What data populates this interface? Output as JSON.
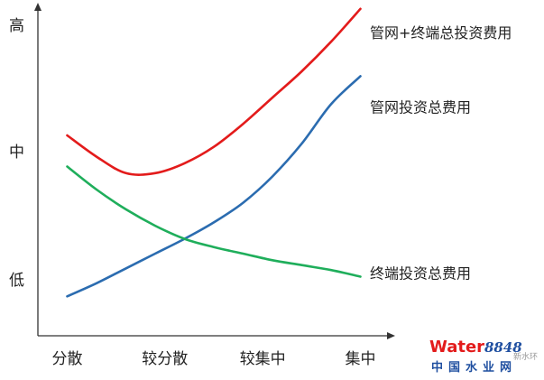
{
  "chart_data": {
    "type": "line",
    "title": "",
    "xlabel": "",
    "ylabel": "",
    "categories": [
      "分散",
      "较分散",
      "较集中",
      "集中"
    ],
    "y_ticks": [
      "低",
      "中",
      "高"
    ],
    "xlim": [
      -0.3,
      3.3
    ],
    "ylim": [
      0,
      10
    ],
    "grid": false,
    "legend": "none",
    "series": [
      {
        "name": "管网+终端总投资费用",
        "color": "#e31b1b",
        "x": [
          0,
          0.3,
          0.6,
          0.9,
          1.2,
          1.5,
          1.8,
          2.1,
          2.4,
          2.7,
          3.0
        ],
        "y": [
          6.1,
          5.45,
          4.95,
          4.95,
          5.25,
          5.75,
          6.45,
          7.25,
          8.05,
          8.95,
          9.95
        ]
      },
      {
        "name": "管网投资总费用",
        "color": "#2b6cb0",
        "x": [
          0,
          0.3,
          0.6,
          0.9,
          1.2,
          1.5,
          1.8,
          2.1,
          2.4,
          2.7,
          3.0
        ],
        "y": [
          1.2,
          1.6,
          2.05,
          2.5,
          2.95,
          3.45,
          4.05,
          4.85,
          5.85,
          7.05,
          7.9
        ]
      },
      {
        "name": "终端投资总费用",
        "color": "#1fae5b",
        "x": [
          0,
          0.3,
          0.6,
          0.9,
          1.2,
          1.5,
          1.8,
          2.1,
          2.4,
          2.7,
          3.0
        ],
        "y": [
          5.15,
          4.45,
          3.85,
          3.35,
          2.95,
          2.7,
          2.5,
          2.3,
          2.15,
          2.0,
          1.8
        ]
      }
    ]
  },
  "watermark": {
    "word": "Water",
    "number": "8848",
    "cn": "中国水业网",
    "small": "新水环"
  },
  "colors": {
    "axis": "#333333",
    "watermark_red": "#e31b1b",
    "watermark_blue": "#1f4fa0",
    "watermark_gray": "#999999"
  }
}
